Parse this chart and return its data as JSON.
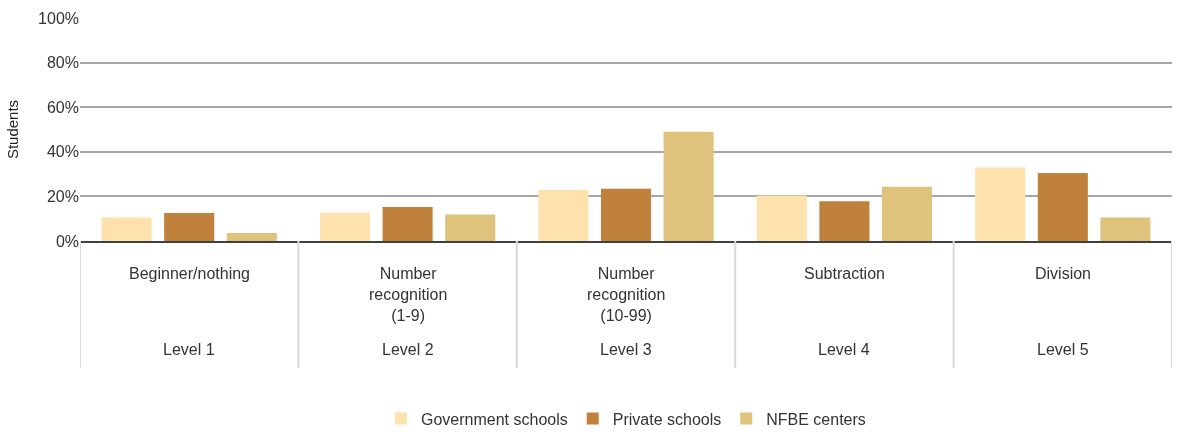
{
  "chart_data": {
    "type": "bar",
    "ylabel": "Students",
    "categories": [
      "Beginner/nothing",
      "Number recognition (1-9)",
      "Number recognition (10-99)",
      "Subtraction",
      "Division"
    ],
    "annotations": [
      "Level 1",
      "Level 2",
      "Level 3",
      "Level 4",
      "Level 5"
    ],
    "series": [
      {
        "name": "Government schools",
        "color": "#fde2ae",
        "values": [
          10.5,
          12.7,
          22.9,
          20.4,
          33.0
        ]
      },
      {
        "name": "Private schools",
        "color": "#bf813b",
        "values": [
          12.6,
          15.3,
          23.4,
          17.8,
          30.5
        ]
      },
      {
        "name": "NFBE centers",
        "color": "#dfc27c",
        "values": [
          3.6,
          11.9,
          49.0,
          24.3,
          10.5
        ]
      }
    ],
    "ylim": [
      0,
      100
    ],
    "yticks": [
      {
        "value": 0,
        "label": "0%"
      },
      {
        "value": 20,
        "label": "20%"
      },
      {
        "value": 40,
        "label": "40%"
      },
      {
        "value": 60,
        "label": "60%"
      },
      {
        "value": 80,
        "label": "80%"
      },
      {
        "value": 100,
        "label": "100%"
      }
    ],
    "grid": "y",
    "legend": "bottom"
  }
}
